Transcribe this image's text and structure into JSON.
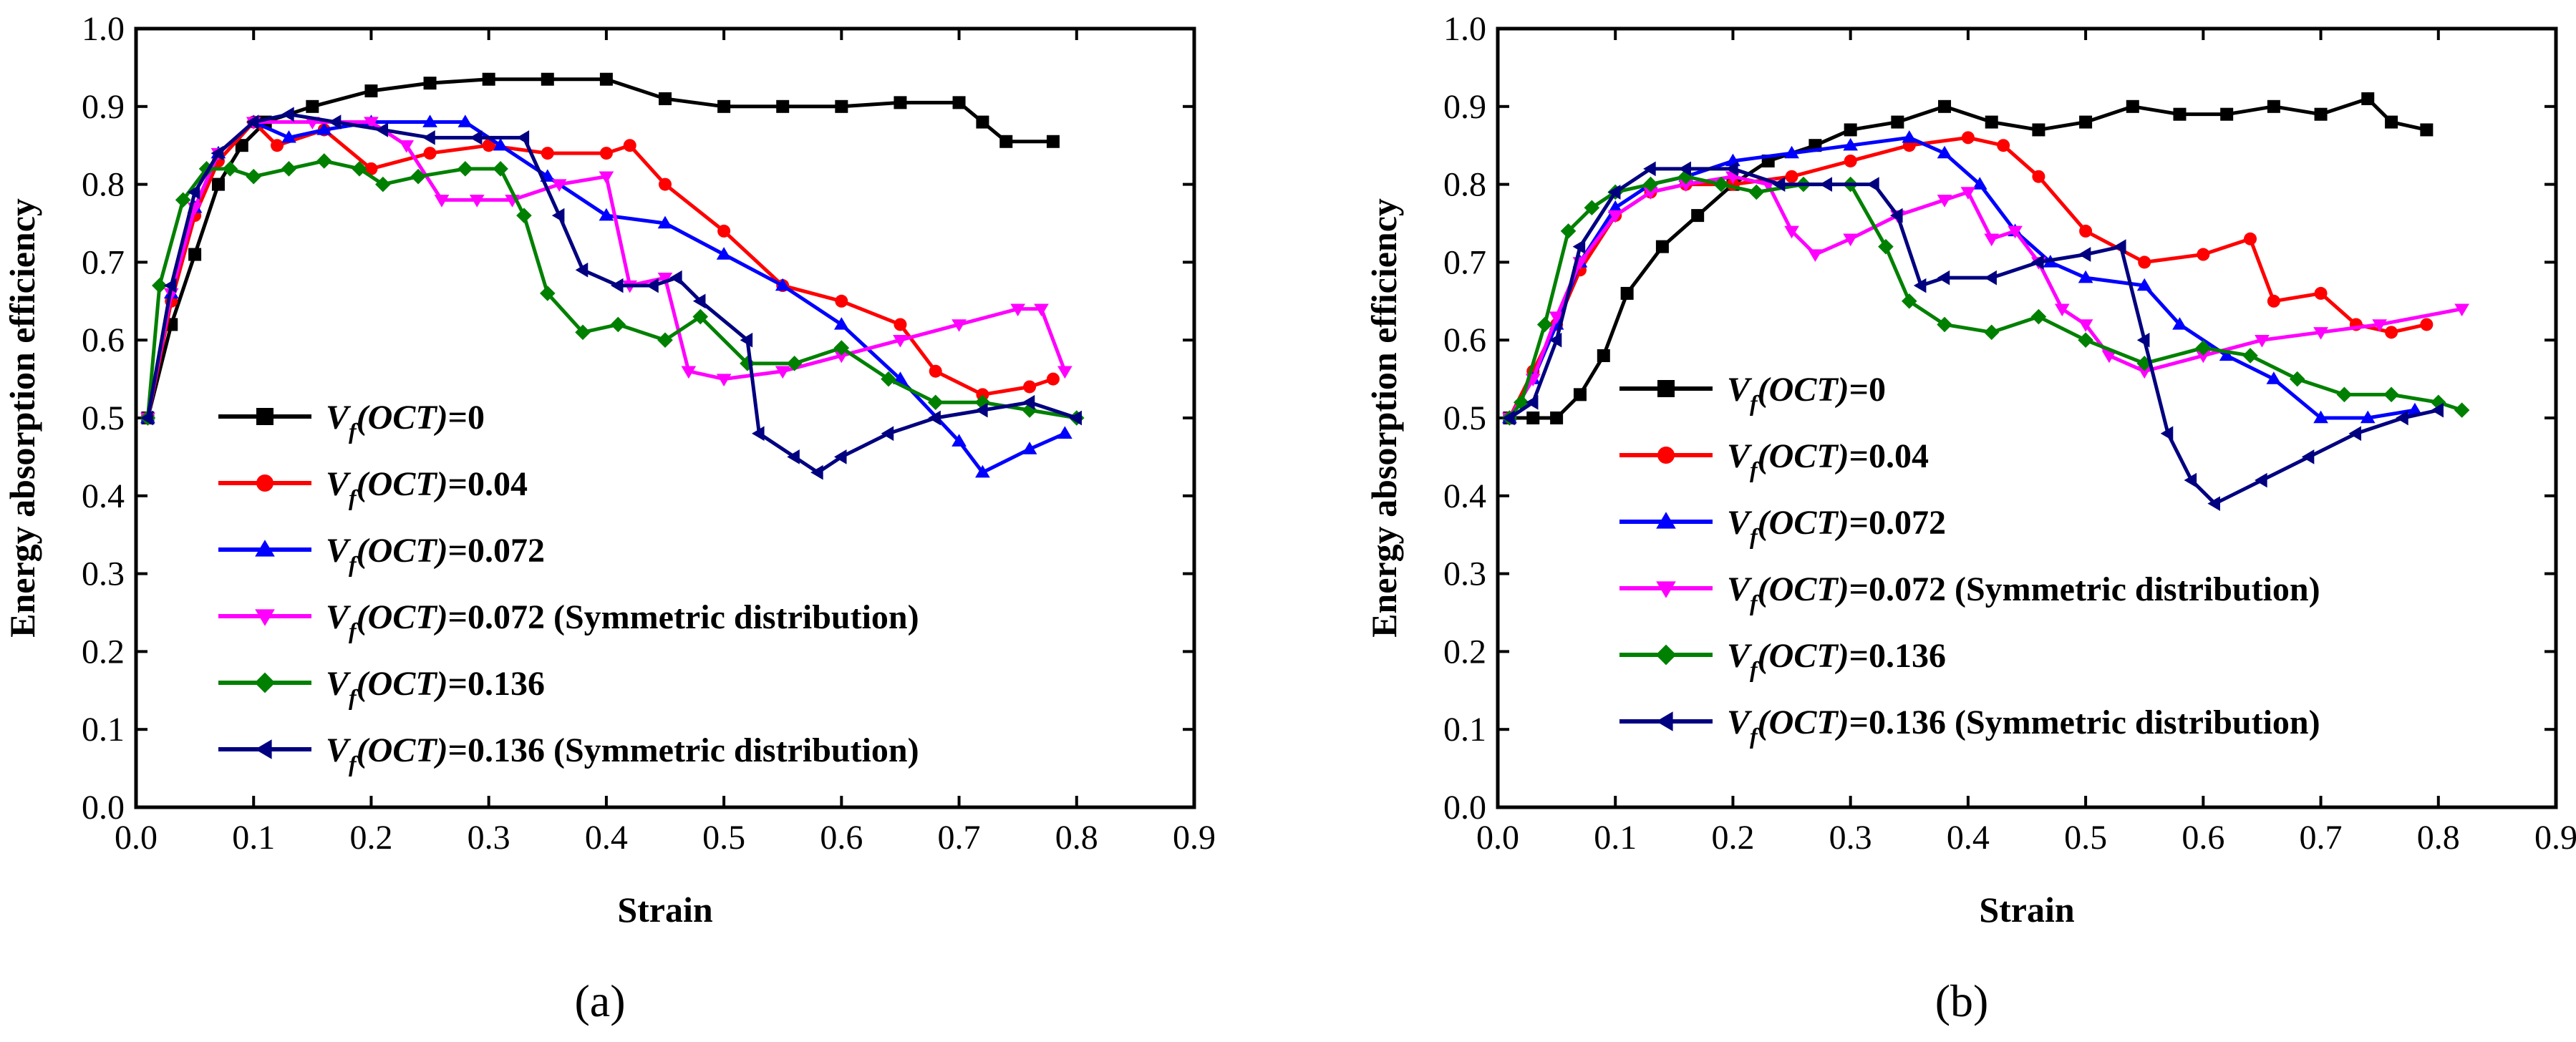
{
  "legend_labels": [
    {
      "var": "V",
      "sub": "f",
      "paren": "(OCT)",
      "value": "=0"
    },
    {
      "var": "V",
      "sub": "f",
      "paren": "(OCT)",
      "value": "=0.04"
    },
    {
      "var": "V",
      "sub": "f",
      "paren": "(OCT)",
      "value": "=0.072"
    },
    {
      "var": "V",
      "sub": "f",
      "paren": "(OCT)",
      "value": "=0.072 (Symmetric distribution)"
    },
    {
      "var": "V",
      "sub": "f",
      "paren": "(OCT)",
      "value": "=0.136"
    },
    {
      "var": "V",
      "sub": "f",
      "paren": "(OCT)",
      "value": "=0.136 (Symmetric distribution)"
    }
  ],
  "series_styles": [
    {
      "color": "#000000",
      "marker": "square"
    },
    {
      "color": "#ff0000",
      "marker": "circle"
    },
    {
      "color": "#0000ff",
      "marker": "triangle-up"
    },
    {
      "color": "#ff00ff",
      "marker": "triangle-down"
    },
    {
      "color": "#008000",
      "marker": "diamond"
    },
    {
      "color": "#000080",
      "marker": "triangle-left"
    }
  ],
  "chart_data": [
    {
      "type": "line",
      "caption": "(a)",
      "xlabel": "Strain",
      "ylabel": "Energy absorption efficiency",
      "xlim": [
        0,
        0.9
      ],
      "ylim": [
        0,
        1.0
      ],
      "xticks": [
        "0.0",
        "0.1",
        "0.2",
        "0.3",
        "0.4",
        "0.5",
        "0.6",
        "0.7",
        "0.8",
        "0.9"
      ],
      "yticks": [
        "0.0",
        "0.1",
        "0.2",
        "0.3",
        "0.4",
        "0.5",
        "0.6",
        "0.7",
        "0.8",
        "0.9",
        "1.0"
      ],
      "series": [
        {
          "name": "Vf(OCT)=0",
          "x": [
            0.01,
            0.03,
            0.05,
            0.07,
            0.09,
            0.11,
            0.15,
            0.2,
            0.25,
            0.3,
            0.35,
            0.4,
            0.45,
            0.5,
            0.55,
            0.6,
            0.65,
            0.7,
            0.72,
            0.74,
            0.78
          ],
          "y": [
            0.5,
            0.62,
            0.71,
            0.8,
            0.85,
            0.88,
            0.9,
            0.92,
            0.93,
            0.935,
            0.935,
            0.935,
            0.91,
            0.9,
            0.9,
            0.9,
            0.905,
            0.905,
            0.88,
            0.855,
            0.855
          ]
        },
        {
          "name": "Vf(OCT)=0.04",
          "x": [
            0.01,
            0.03,
            0.05,
            0.07,
            0.1,
            0.12,
            0.16,
            0.2,
            0.25,
            0.3,
            0.35,
            0.4,
            0.42,
            0.45,
            0.5,
            0.55,
            0.6,
            0.65,
            0.68,
            0.72,
            0.76,
            0.78
          ],
          "y": [
            0.5,
            0.65,
            0.76,
            0.83,
            0.88,
            0.85,
            0.87,
            0.82,
            0.84,
            0.85,
            0.84,
            0.84,
            0.85,
            0.8,
            0.74,
            0.67,
            0.65,
            0.62,
            0.56,
            0.53,
            0.54,
            0.55
          ]
        },
        {
          "name": "Vf(OCT)=0.072",
          "x": [
            0.01,
            0.03,
            0.05,
            0.07,
            0.1,
            0.13,
            0.16,
            0.2,
            0.25,
            0.28,
            0.31,
            0.35,
            0.4,
            0.45,
            0.5,
            0.55,
            0.6,
            0.65,
            0.7,
            0.72,
            0.76,
            0.79
          ],
          "y": [
            0.5,
            0.66,
            0.77,
            0.84,
            0.88,
            0.86,
            0.87,
            0.88,
            0.88,
            0.88,
            0.85,
            0.81,
            0.76,
            0.75,
            0.71,
            0.67,
            0.62,
            0.55,
            0.47,
            0.43,
            0.46,
            0.48
          ]
        },
        {
          "name": "Vf(OCT)=0.072 (Symmetric distribution)",
          "x": [
            0.01,
            0.03,
            0.05,
            0.07,
            0.1,
            0.15,
            0.2,
            0.23,
            0.26,
            0.29,
            0.32,
            0.36,
            0.4,
            0.42,
            0.45,
            0.47,
            0.5,
            0.55,
            0.6,
            0.65,
            0.7,
            0.75,
            0.77,
            0.79
          ],
          "y": [
            0.5,
            0.66,
            0.77,
            0.84,
            0.88,
            0.88,
            0.88,
            0.85,
            0.78,
            0.78,
            0.78,
            0.8,
            0.81,
            0.67,
            0.68,
            0.56,
            0.55,
            0.56,
            0.58,
            0.6,
            0.62,
            0.64,
            0.64,
            0.56
          ]
        },
        {
          "name": "Vf(OCT)=0.136",
          "x": [
            0.01,
            0.02,
            0.04,
            0.06,
            0.08,
            0.1,
            0.13,
            0.16,
            0.19,
            0.21,
            0.24,
            0.28,
            0.31,
            0.33,
            0.35,
            0.38,
            0.41,
            0.45,
            0.48,
            0.52,
            0.56,
            0.6,
            0.64,
            0.68,
            0.72,
            0.76,
            0.8
          ],
          "y": [
            0.5,
            0.67,
            0.78,
            0.82,
            0.82,
            0.81,
            0.82,
            0.83,
            0.82,
            0.8,
            0.81,
            0.82,
            0.82,
            0.76,
            0.66,
            0.61,
            0.62,
            0.6,
            0.63,
            0.57,
            0.57,
            0.59,
            0.55,
            0.52,
            0.52,
            0.51,
            0.5
          ]
        },
        {
          "name": "Vf(OCT)=0.136 (Symmetric distribution)",
          "x": [
            0.01,
            0.03,
            0.05,
            0.07,
            0.1,
            0.13,
            0.17,
            0.21,
            0.25,
            0.29,
            0.33,
            0.36,
            0.38,
            0.41,
            0.44,
            0.46,
            0.48,
            0.52,
            0.53,
            0.56,
            0.58,
            0.6,
            0.64,
            0.68,
            0.72,
            0.76,
            0.8
          ],
          "y": [
            0.5,
            0.67,
            0.79,
            0.84,
            0.88,
            0.89,
            0.88,
            0.87,
            0.86,
            0.86,
            0.86,
            0.76,
            0.69,
            0.67,
            0.67,
            0.68,
            0.65,
            0.6,
            0.48,
            0.45,
            0.43,
            0.45,
            0.48,
            0.5,
            0.51,
            0.52,
            0.5
          ]
        }
      ]
    },
    {
      "type": "line",
      "caption": "(b)",
      "xlabel": "Strain",
      "ylabel": "Energy absorption efficiency",
      "xlim": [
        0,
        0.9
      ],
      "ylim": [
        0,
        1.0
      ],
      "xticks": [
        "0.0",
        "0.1",
        "0.2",
        "0.3",
        "0.4",
        "0.5",
        "0.6",
        "0.7",
        "0.8",
        "0.9"
      ],
      "yticks": [
        "0.0",
        "0.1",
        "0.2",
        "0.3",
        "0.4",
        "0.5",
        "0.6",
        "0.7",
        "0.8",
        "0.9",
        "1.0"
      ],
      "series": [
        {
          "name": "Vf(OCT)=0",
          "x": [
            0.01,
            0.03,
            0.05,
            0.07,
            0.09,
            0.11,
            0.14,
            0.17,
            0.2,
            0.23,
            0.27,
            0.3,
            0.34,
            0.38,
            0.42,
            0.46,
            0.5,
            0.54,
            0.58,
            0.62,
            0.66,
            0.7,
            0.74,
            0.76,
            0.79
          ],
          "y": [
            0.5,
            0.5,
            0.5,
            0.53,
            0.58,
            0.66,
            0.72,
            0.76,
            0.8,
            0.83,
            0.85,
            0.87,
            0.88,
            0.9,
            0.88,
            0.87,
            0.88,
            0.9,
            0.89,
            0.89,
            0.9,
            0.89,
            0.91,
            0.88,
            0.87
          ]
        },
        {
          "name": "Vf(OCT)=0.04",
          "x": [
            0.01,
            0.03,
            0.05,
            0.07,
            0.1,
            0.13,
            0.16,
            0.2,
            0.25,
            0.3,
            0.35,
            0.4,
            0.43,
            0.46,
            0.5,
            0.55,
            0.6,
            0.64,
            0.66,
            0.7,
            0.73,
            0.76,
            0.79
          ],
          "y": [
            0.5,
            0.56,
            0.62,
            0.69,
            0.76,
            0.79,
            0.8,
            0.8,
            0.81,
            0.83,
            0.85,
            0.86,
            0.85,
            0.81,
            0.74,
            0.7,
            0.71,
            0.73,
            0.65,
            0.66,
            0.62,
            0.61,
            0.62
          ]
        },
        {
          "name": "Vf(OCT)=0.072",
          "x": [
            0.01,
            0.03,
            0.05,
            0.07,
            0.1,
            0.13,
            0.16,
            0.2,
            0.25,
            0.3,
            0.35,
            0.38,
            0.41,
            0.44,
            0.47,
            0.5,
            0.55,
            0.58,
            0.62,
            0.66,
            0.7,
            0.74,
            0.78
          ],
          "y": [
            0.5,
            0.55,
            0.62,
            0.7,
            0.77,
            0.8,
            0.81,
            0.83,
            0.84,
            0.85,
            0.86,
            0.84,
            0.8,
            0.74,
            0.7,
            0.68,
            0.67,
            0.62,
            0.58,
            0.55,
            0.5,
            0.5,
            0.51
          ]
        },
        {
          "name": "Vf(OCT)=0.072 (Symmetric distribution)",
          "x": [
            0.01,
            0.03,
            0.05,
            0.07,
            0.1,
            0.13,
            0.16,
            0.2,
            0.23,
            0.25,
            0.27,
            0.3,
            0.34,
            0.38,
            0.4,
            0.42,
            0.44,
            0.46,
            0.48,
            0.5,
            0.52,
            0.55,
            0.6,
            0.65,
            0.7,
            0.75,
            0.82
          ],
          "y": [
            0.5,
            0.55,
            0.63,
            0.7,
            0.76,
            0.79,
            0.8,
            0.81,
            0.8,
            0.74,
            0.71,
            0.73,
            0.76,
            0.78,
            0.79,
            0.73,
            0.74,
            0.7,
            0.64,
            0.62,
            0.58,
            0.56,
            0.58,
            0.6,
            0.61,
            0.62,
            0.64
          ]
        },
        {
          "name": "Vf(OCT)=0.136",
          "x": [
            0.01,
            0.02,
            0.04,
            0.06,
            0.08,
            0.1,
            0.13,
            0.16,
            0.19,
            0.22,
            0.26,
            0.3,
            0.33,
            0.35,
            0.38,
            0.42,
            0.46,
            0.5,
            0.55,
            0.6,
            0.64,
            0.68,
            0.72,
            0.76,
            0.8,
            0.82
          ],
          "y": [
            0.5,
            0.52,
            0.62,
            0.74,
            0.77,
            0.79,
            0.8,
            0.81,
            0.8,
            0.79,
            0.8,
            0.8,
            0.72,
            0.65,
            0.62,
            0.61,
            0.63,
            0.6,
            0.57,
            0.59,
            0.58,
            0.55,
            0.53,
            0.53,
            0.52,
            0.51
          ]
        },
        {
          "name": "Vf(OCT)=0.136 (Symmetric distribution)",
          "x": [
            0.01,
            0.03,
            0.05,
            0.07,
            0.1,
            0.13,
            0.16,
            0.2,
            0.24,
            0.28,
            0.32,
            0.34,
            0.36,
            0.38,
            0.42,
            0.46,
            0.5,
            0.53,
            0.55,
            0.57,
            0.59,
            0.61,
            0.65,
            0.69,
            0.73,
            0.77,
            0.8
          ],
          "y": [
            0.5,
            0.52,
            0.6,
            0.72,
            0.79,
            0.82,
            0.82,
            0.82,
            0.8,
            0.8,
            0.8,
            0.76,
            0.67,
            0.68,
            0.68,
            0.7,
            0.71,
            0.72,
            0.6,
            0.48,
            0.42,
            0.39,
            0.42,
            0.45,
            0.48,
            0.5,
            0.51
          ]
        }
      ]
    }
  ]
}
